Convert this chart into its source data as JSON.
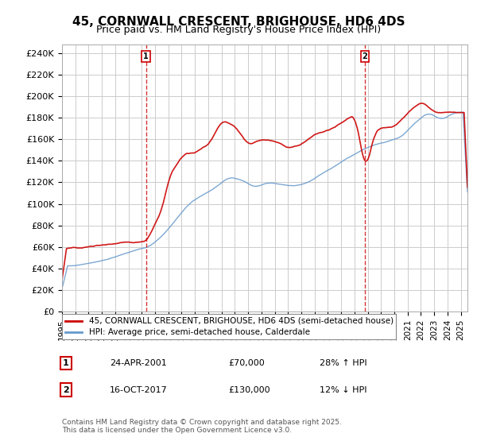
{
  "title": "45, CORNWALL CRESCENT, BRIGHOUSE, HD6 4DS",
  "subtitle": "Price paid vs. HM Land Registry's House Price Index (HPI)",
  "ylabel_ticks": [
    "£0",
    "£20K",
    "£40K",
    "£60K",
    "£80K",
    "£100K",
    "£120K",
    "£140K",
    "£160K",
    "£180K",
    "£200K",
    "£220K",
    "£240K"
  ],
  "ytick_values": [
    0,
    20000,
    40000,
    60000,
    80000,
    100000,
    120000,
    140000,
    160000,
    180000,
    200000,
    220000,
    240000
  ],
  "ylim": [
    0,
    248000
  ],
  "xlim_start": 1995.0,
  "xlim_end": 2025.5,
  "legend_line1": "45, CORNWALL CRESCENT, BRIGHOUSE, HD6 4DS (semi-detached house)",
  "legend_line2": "HPI: Average price, semi-detached house, Calderdale",
  "marker1_label": "1",
  "marker1_date": "24-APR-2001",
  "marker1_price": "£70,000",
  "marker1_pct": "28% ↑ HPI",
  "marker1_x": 2001.31,
  "marker1_y": 70000,
  "marker2_label": "2",
  "marker2_date": "16-OCT-2017",
  "marker2_price": "£130,000",
  "marker2_pct": "12% ↓ HPI",
  "marker2_x": 2017.79,
  "marker2_y": 130000,
  "color_red": "#cc0000",
  "color_blue": "#6699cc",
  "copyright_text": "Contains HM Land Registry data © Crown copyright and database right 2025.\nThis data is licensed under the Open Government Licence v3.0.",
  "background_color": "#ffffff",
  "grid_color": "#cccccc",
  "title_fontsize": 11,
  "subtitle_fontsize": 9,
  "tick_fontsize": 8,
  "legend_fontsize": 8
}
